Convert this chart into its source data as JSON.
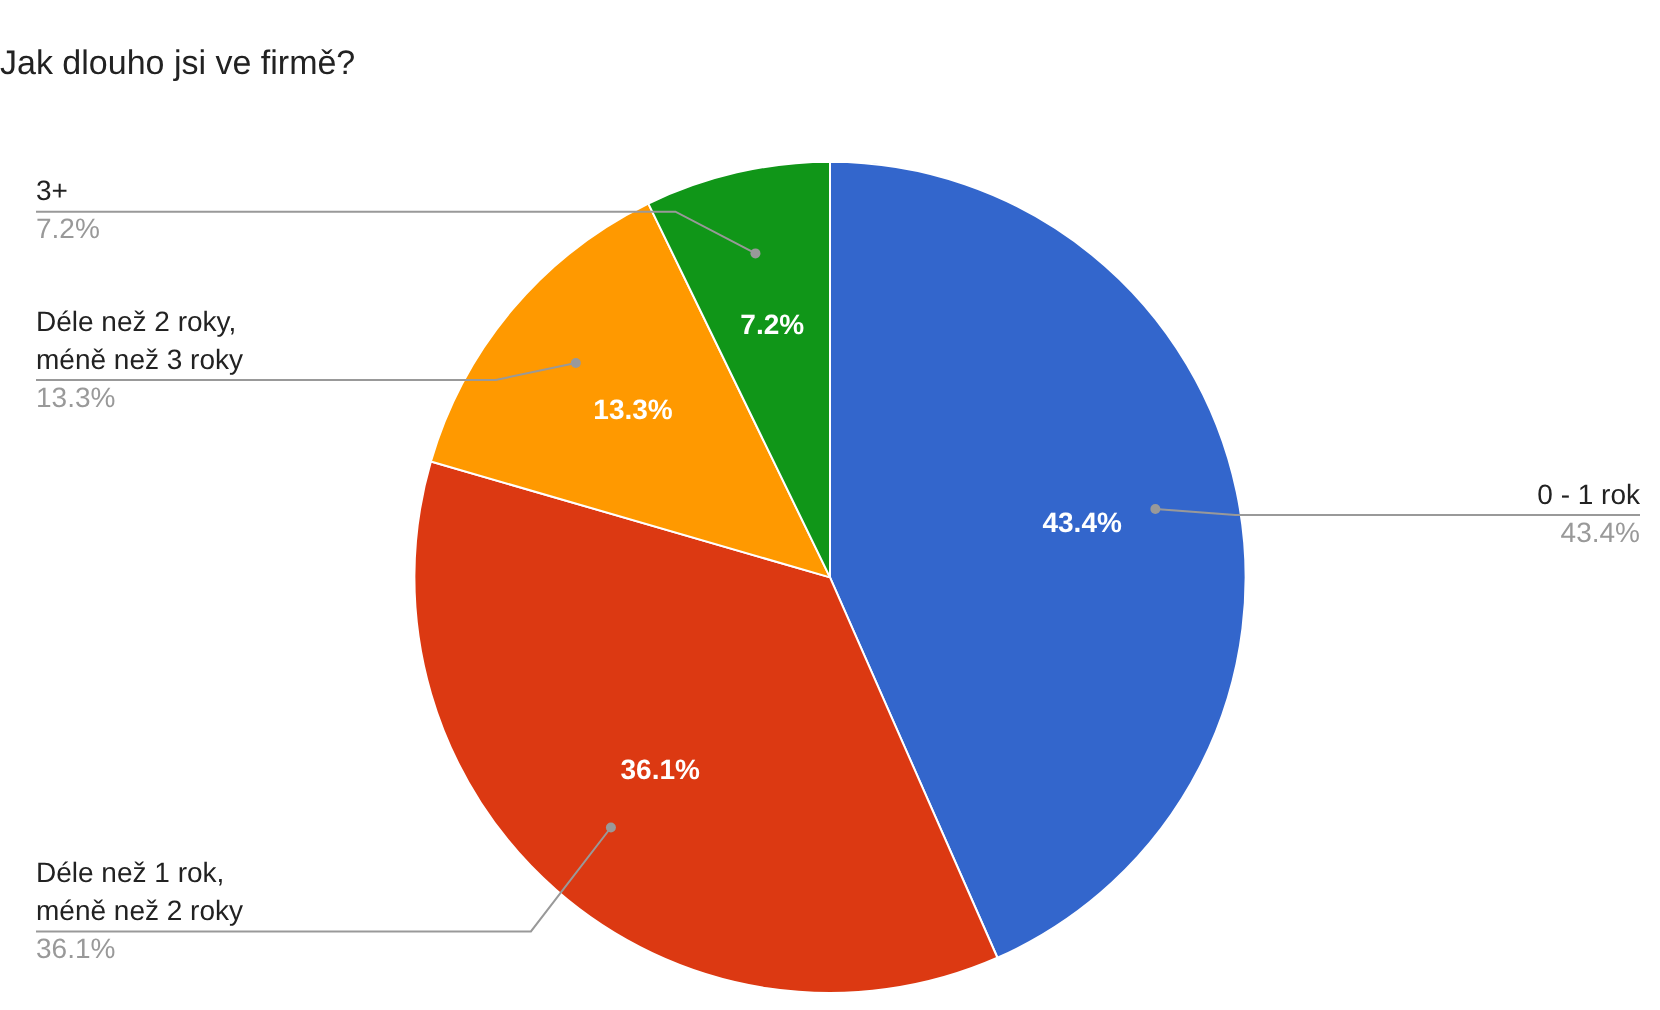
{
  "chart_data": {
    "type": "pie",
    "title": "Jak dlouho jsi ve firmě?",
    "categories": [
      "0 - 1 rok",
      "Déle než 1 rok, méně než 2 roky",
      "Déle než 2 roky, méně než 3 roky",
      "3+"
    ],
    "values": [
      43.4,
      36.1,
      13.3,
      7.2
    ],
    "colors": [
      "#3366cc",
      "#dc3912",
      "#ff9900",
      "#109618"
    ],
    "value_labels": [
      "43.4%",
      "36.1%",
      "13.3%",
      "7.2%"
    ],
    "legend": false
  }
}
